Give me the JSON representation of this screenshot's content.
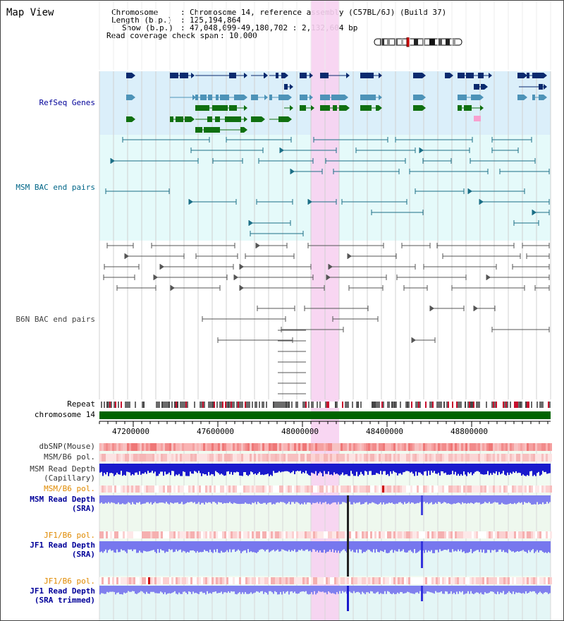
{
  "title": "Map View",
  "info": {
    "chromosome_key": "Chromosome",
    "chromosome_val": "Chromosome 14, reference assembly (C57BL/6J) (Build 37)",
    "length_key": "Length (b.p.)",
    "length_val": "125,194,864",
    "show_key": "Show (b.p.)",
    "show_val": "47,048,099-49,180,702 : 2,132,604 bp",
    "span_key": "Read coverage check span",
    "span_val": "10,000"
  },
  "tracks": {
    "refseq": "RefSeq Genes",
    "msm_bac": "MSM BAC end pairs",
    "b6n_bac": "B6N BAC end pairs",
    "repeat": "Repeat",
    "chromosome": "chromosome 14",
    "dbsnp": "dbSNP(Mouse)",
    "msm_b6_pol_1": "MSM/B6 pol.",
    "msm_read_depth_cap_1": "MSM Read Depth",
    "msm_read_depth_cap_2": "(Capillary)",
    "msm_b6_pol_2": "MSM/B6 pol.",
    "msm_read_depth_sra_1": "MSM Read Depth",
    "msm_read_depth_sra_2": "(SRA)",
    "jf1_b6_pol_1": "JF1/B6 pol.",
    "jf1_read_depth_sra_1": "JF1 Read Depth",
    "jf1_read_depth_sra_2": "(SRA)",
    "jf1_b6_pol_2": "JF1/B6 pol.",
    "jf1_read_depth_trim_1": "JF1 Read Depth",
    "jf1_read_depth_trim_2": "(SRA trimmed)"
  },
  "ruler": {
    "ticks": [
      "47200000",
      "47600000",
      "48000000",
      "48400000",
      "48800000"
    ]
  },
  "colors": {
    "refseq_bg": "#dbeffa",
    "msm_bg": "#e5fafa",
    "highlight": "#f7d2f1",
    "navy": "#0a2a6e",
    "teal": "#4d93b8",
    "green": "#107010",
    "chrom_bar": "#006400",
    "label_navy": "#000099",
    "label_teal": "#006688",
    "label_orange": "#e08a00",
    "depth_blue": "#1a1acc",
    "depth_light": "#7777ee"
  }
}
